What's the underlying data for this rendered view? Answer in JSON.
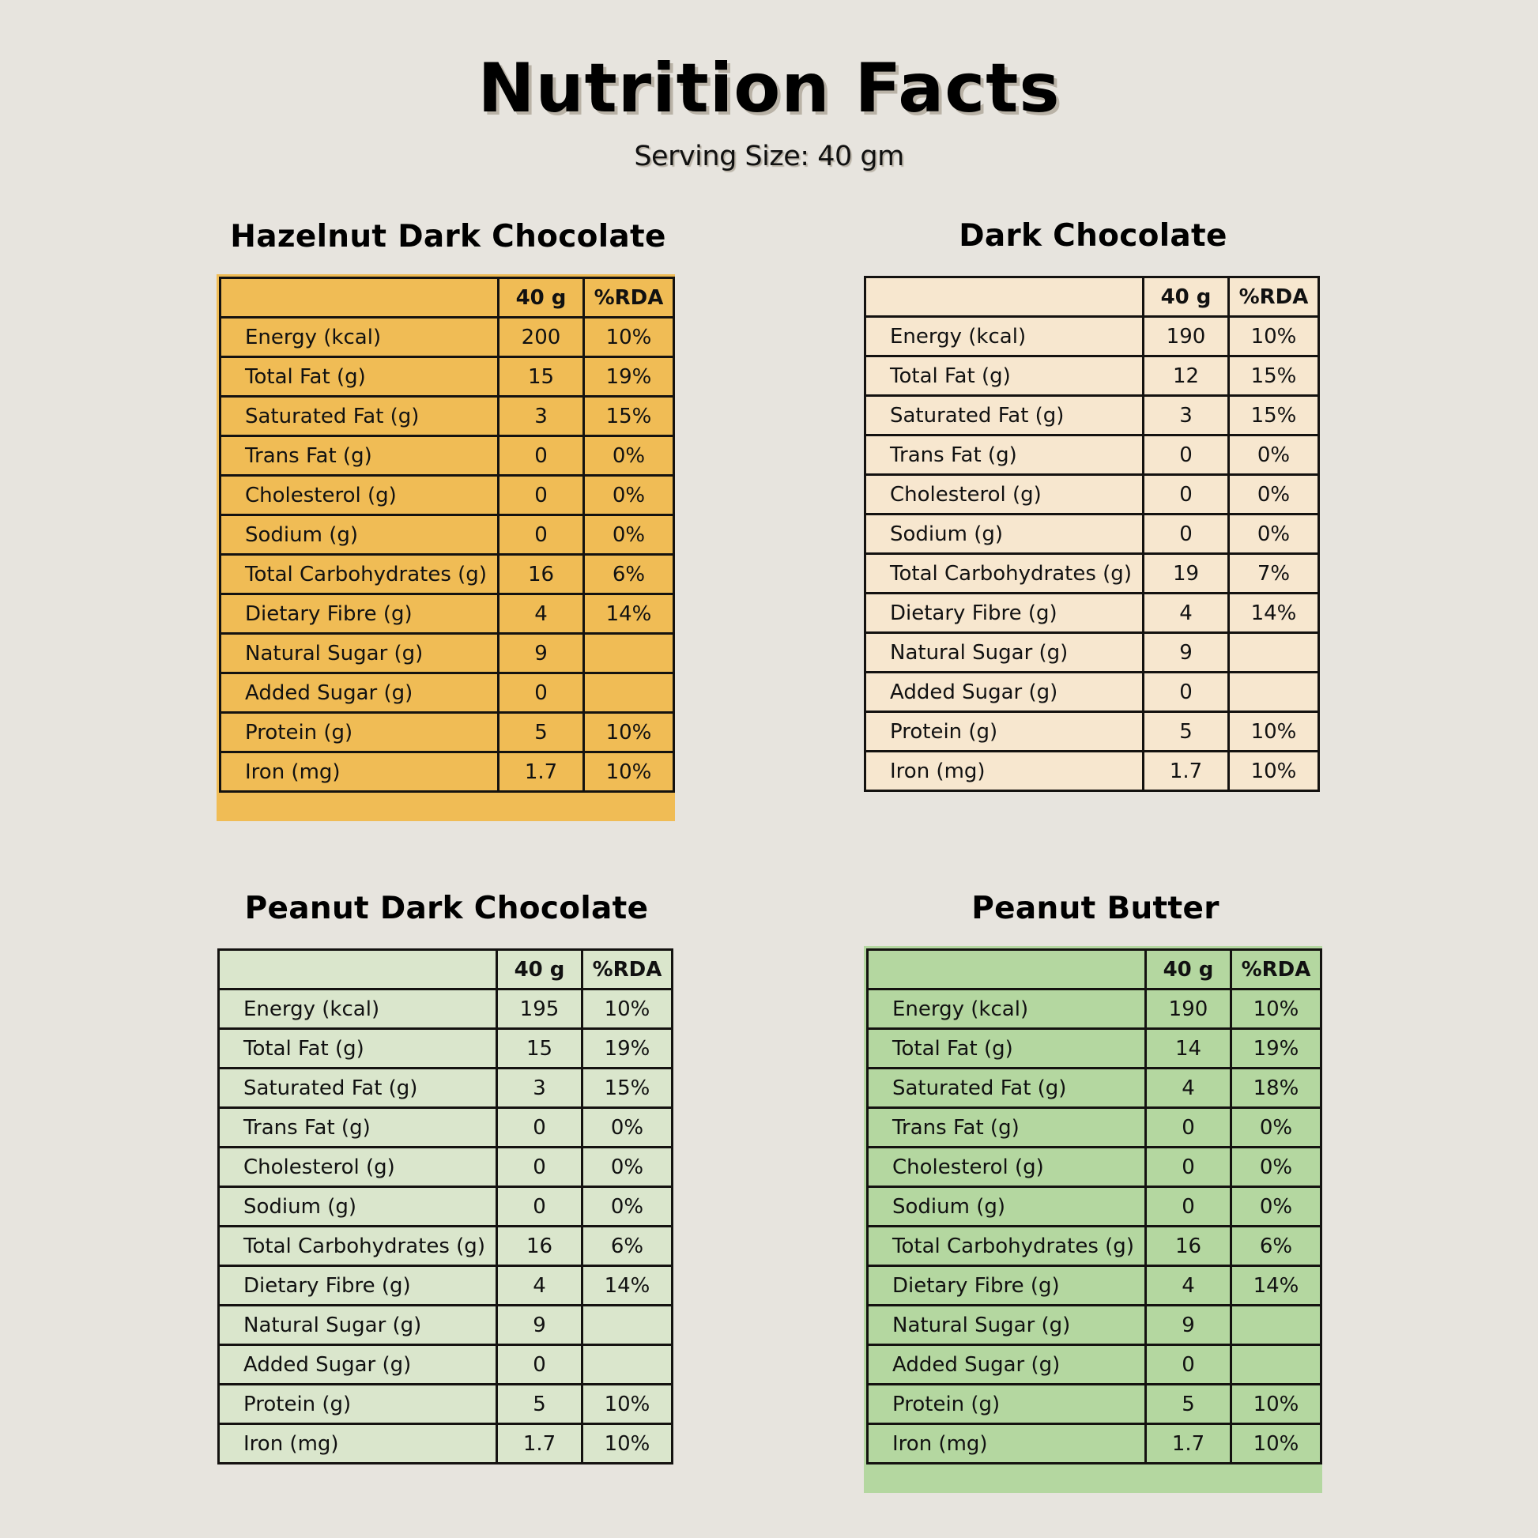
{
  "header": {
    "title": "Nutrition Facts",
    "serving_size": "Serving Size: 40 gm"
  },
  "colors": {
    "background": "#e7e4de",
    "hazelnut_table": "#f0bc55",
    "dark_chocolate_table": "#f7e7cf",
    "peanut_dark_chocolate_table": "#dae6cc",
    "peanut_butter_table": "#b4d7a0",
    "border": "#141210"
  },
  "columns": {
    "amount": "40 g",
    "rda": "%RDA"
  },
  "products": [
    {
      "name": "Hazelnut Dark Chocolate",
      "rows": [
        {
          "label": "Energy (kcal)",
          "amount": "200",
          "rda": "10%"
        },
        {
          "label": "Total Fat (g)",
          "amount": "15",
          "rda": "19%"
        },
        {
          "label": "Saturated Fat (g)",
          "amount": "3",
          "rda": "15%"
        },
        {
          "label": "Trans Fat (g)",
          "amount": "0",
          "rda": "0%"
        },
        {
          "label": "Cholesterol (g)",
          "amount": "0",
          "rda": "0%"
        },
        {
          "label": "Sodium (g)",
          "amount": "0",
          "rda": "0%"
        },
        {
          "label": "Total Carbohydrates (g)",
          "amount": "16",
          "rda": "6%"
        },
        {
          "label": "Dietary Fibre (g)",
          "amount": "4",
          "rda": "14%"
        },
        {
          "label": "Natural Sugar (g)",
          "amount": "9",
          "rda": ""
        },
        {
          "label": "Added Sugar (g)",
          "amount": "0",
          "rda": ""
        },
        {
          "label": "Protein (g)",
          "amount": "5",
          "rda": "10%"
        },
        {
          "label": "Iron (mg)",
          "amount": "1.7",
          "rda": "10%"
        }
      ]
    },
    {
      "name": "Dark Chocolate",
      "rows": [
        {
          "label": "Energy (kcal)",
          "amount": "190",
          "rda": "10%"
        },
        {
          "label": "Total Fat (g)",
          "amount": "12",
          "rda": "15%"
        },
        {
          "label": "Saturated Fat (g)",
          "amount": "3",
          "rda": "15%"
        },
        {
          "label": "Trans Fat (g)",
          "amount": "0",
          "rda": "0%"
        },
        {
          "label": "Cholesterol (g)",
          "amount": "0",
          "rda": "0%"
        },
        {
          "label": "Sodium (g)",
          "amount": "0",
          "rda": "0%"
        },
        {
          "label": "Total Carbohydrates (g)",
          "amount": "19",
          "rda": "7%"
        },
        {
          "label": "Dietary Fibre (g)",
          "amount": "4",
          "rda": "14%"
        },
        {
          "label": "Natural Sugar (g)",
          "amount": "9",
          "rda": ""
        },
        {
          "label": "Added Sugar (g)",
          "amount": "0",
          "rda": ""
        },
        {
          "label": "Protein (g)",
          "amount": "5",
          "rda": "10%"
        },
        {
          "label": "Iron (mg)",
          "amount": "1.7",
          "rda": "10%"
        }
      ]
    },
    {
      "name": "Peanut Dark Chocolate",
      "rows": [
        {
          "label": "Energy (kcal)",
          "amount": "195",
          "rda": "10%"
        },
        {
          "label": "Total Fat (g)",
          "amount": "15",
          "rda": "19%"
        },
        {
          "label": "Saturated Fat (g)",
          "amount": "3",
          "rda": "15%"
        },
        {
          "label": "Trans Fat (g)",
          "amount": "0",
          "rda": "0%"
        },
        {
          "label": "Cholesterol (g)",
          "amount": "0",
          "rda": "0%"
        },
        {
          "label": "Sodium (g)",
          "amount": "0",
          "rda": "0%"
        },
        {
          "label": "Total Carbohydrates (g)",
          "amount": "16",
          "rda": "6%"
        },
        {
          "label": "Dietary Fibre (g)",
          "amount": "4",
          "rda": "14%"
        },
        {
          "label": "Natural Sugar (g)",
          "amount": "9",
          "rda": ""
        },
        {
          "label": "Added Sugar (g)",
          "amount": "0",
          "rda": ""
        },
        {
          "label": "Protein (g)",
          "amount": "5",
          "rda": "10%"
        },
        {
          "label": "Iron (mg)",
          "amount": "1.7",
          "rda": "10%"
        }
      ]
    },
    {
      "name": "Peanut Butter",
      "rows": [
        {
          "label": "Energy (kcal)",
          "amount": "190",
          "rda": "10%"
        },
        {
          "label": "Total Fat (g)",
          "amount": "14",
          "rda": "19%"
        },
        {
          "label": "Saturated Fat (g)",
          "amount": "4",
          "rda": "18%"
        },
        {
          "label": "Trans Fat (g)",
          "amount": "0",
          "rda": "0%"
        },
        {
          "label": "Cholesterol (g)",
          "amount": "0",
          "rda": "0%"
        },
        {
          "label": "Sodium (g)",
          "amount": "0",
          "rda": "0%"
        },
        {
          "label": "Total Carbohydrates (g)",
          "amount": "16",
          "rda": "6%"
        },
        {
          "label": "Dietary Fibre (g)",
          "amount": "4",
          "rda": "14%"
        },
        {
          "label": "Natural Sugar (g)",
          "amount": "9",
          "rda": ""
        },
        {
          "label": "Added Sugar (g)",
          "amount": "0",
          "rda": ""
        },
        {
          "label": "Protein (g)",
          "amount": "5",
          "rda": "10%"
        },
        {
          "label": "Iron (mg)",
          "amount": "1.7",
          "rda": "10%"
        }
      ]
    }
  ]
}
